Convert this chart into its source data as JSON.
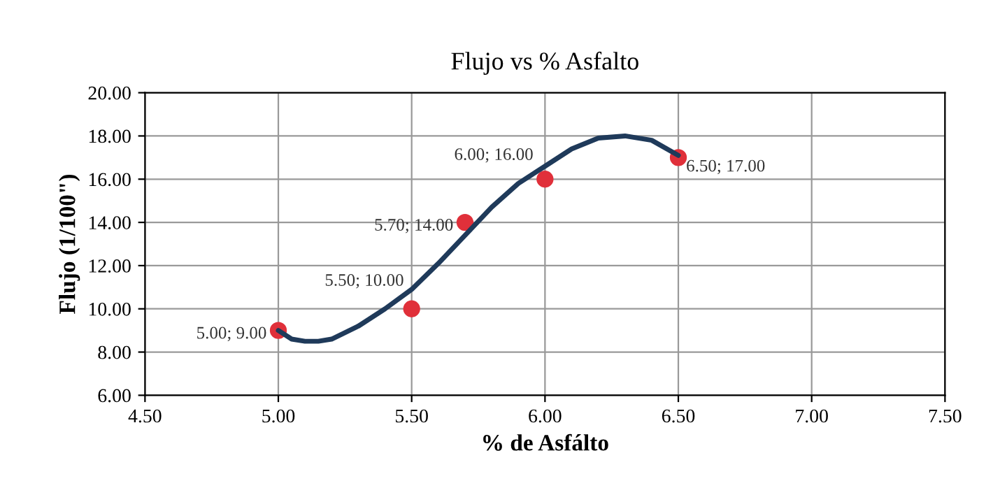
{
  "chart_data": {
    "type": "scatter",
    "title": "Flujo vs % Asfalto",
    "xlabel": "% de Asfálto",
    "ylabel": "Flujo (1/100\")",
    "xlim": [
      4.5,
      7.5
    ],
    "ylim": [
      6,
      20
    ],
    "xticks": [
      {
        "value": 4.5,
        "label": "4.50"
      },
      {
        "value": 5.0,
        "label": "5.00"
      },
      {
        "value": 5.5,
        "label": "5.50"
      },
      {
        "value": 6.0,
        "label": "6.00"
      },
      {
        "value": 6.5,
        "label": "6.50"
      },
      {
        "value": 7.0,
        "label": "7.00"
      },
      {
        "value": 7.5,
        "label": "7.50"
      }
    ],
    "yticks": [
      {
        "value": 6,
        "label": "6.00"
      },
      {
        "value": 8,
        "label": "8.00"
      },
      {
        "value": 10,
        "label": "10.00"
      },
      {
        "value": 12,
        "label": "12.00"
      },
      {
        "value": 14,
        "label": "14.00"
      },
      {
        "value": 16,
        "label": "16.00"
      },
      {
        "value": 18,
        "label": "18.00"
      },
      {
        "value": 20,
        "label": "20.00"
      }
    ],
    "grid": true,
    "legend": false,
    "series": [
      {
        "marker": "circle",
        "color": "#e0303a",
        "x": [
          5.0,
          5.5,
          5.7,
          6.0,
          6.5
        ],
        "values": [
          9.0,
          10.0,
          14.0,
          16.0,
          17.0
        ],
        "value_labels": [
          "5.00; 9.00",
          "5.50; 10.00",
          "5.70; 14.00",
          "6.00; 16.00",
          "6.50; 17.00"
        ]
      },
      {
        "type": "line",
        "color": "#1f3a5a",
        "x": [
          5.0,
          5.05,
          5.1,
          5.15,
          5.2,
          5.3,
          5.4,
          5.5,
          5.6,
          5.7,
          5.8,
          5.9,
          6.0,
          6.1,
          6.2,
          6.3,
          6.4,
          6.5
        ],
        "values": [
          9.0,
          8.6,
          8.5,
          8.5,
          8.6,
          9.2,
          10.0,
          10.9,
          12.1,
          13.4,
          14.7,
          15.8,
          16.6,
          17.4,
          17.9,
          18.0,
          17.8,
          17.1
        ]
      }
    ]
  }
}
